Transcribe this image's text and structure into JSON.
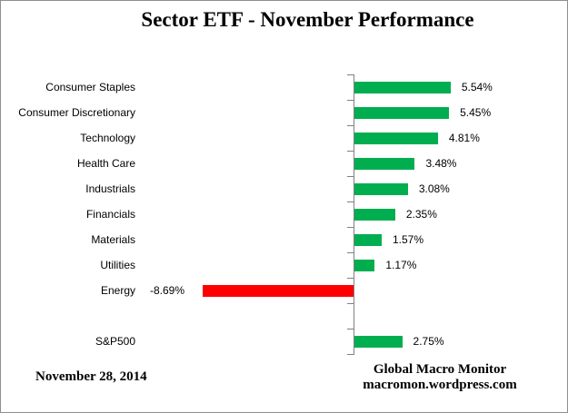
{
  "title": "Sector ETF - November Performance",
  "footer": {
    "date": "November 28, 2014",
    "source_line1": "Global Macro Monitor",
    "source_line2": "macromon.wordpress.com"
  },
  "chart_data": {
    "type": "bar",
    "orientation": "horizontal",
    "title": "Sector ETF - November Performance",
    "categories": [
      "Consumer Staples",
      "Consumer Discretionary",
      "Technology",
      "Health Care",
      "Industrials",
      "Financials",
      "Materials",
      "Utilities",
      "Energy",
      "",
      "S&P500"
    ],
    "values": [
      5.54,
      5.45,
      4.81,
      3.48,
      3.08,
      2.35,
      1.57,
      1.17,
      -8.69,
      null,
      2.75
    ],
    "value_labels": [
      "5.54%",
      "5.45%",
      "4.81%",
      "3.48%",
      "3.08%",
      "2.35%",
      "1.57%",
      "1.17%",
      "-8.69%",
      "",
      "2.75%"
    ],
    "xlabel": "",
    "ylabel": "",
    "xlim": [
      -9.5,
      7
    ],
    "grid": false,
    "legend": false,
    "positive_color": "#00AE50",
    "negative_color": "#FE0000",
    "axis_color": "#808080",
    "label_color": "#000000"
  }
}
